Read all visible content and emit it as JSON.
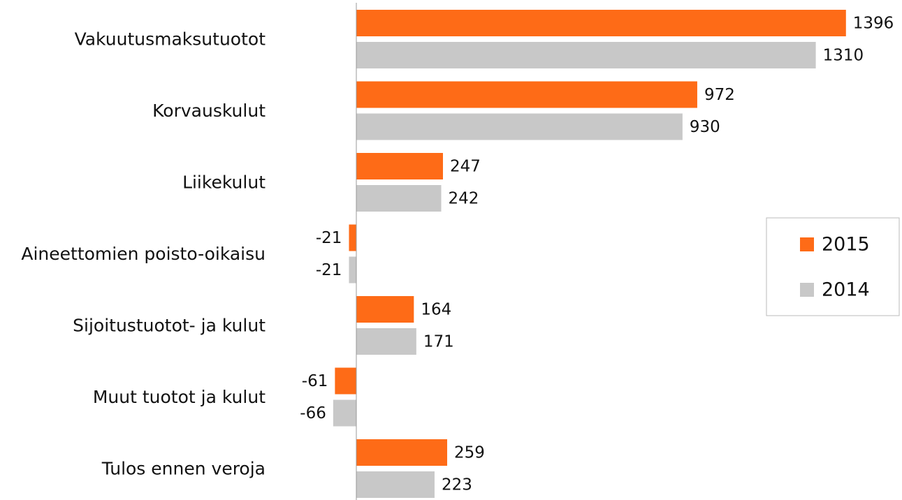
{
  "chart_data": {
    "type": "bar",
    "orientation": "horizontal",
    "categories": [
      "Vakuutusmaksutuotot",
      "Korvauskulut",
      "Liikekulut",
      "Aineettomien poisto-oikaisu",
      "Sijoitustuotot- ja kulut",
      "Muut tuotot ja kulut",
      "Tulos ennen veroja"
    ],
    "series": [
      {
        "name": "2015",
        "color": "#fe6b17",
        "values": [
          1396,
          972,
          247,
          -21,
          164,
          -61,
          259
        ]
      },
      {
        "name": "2014",
        "color": "#c8c8c8",
        "values": [
          1310,
          930,
          242,
          -21,
          171,
          -66,
          223
        ]
      }
    ],
    "xlim": [
      -100,
      1500
    ],
    "legend": "right"
  }
}
